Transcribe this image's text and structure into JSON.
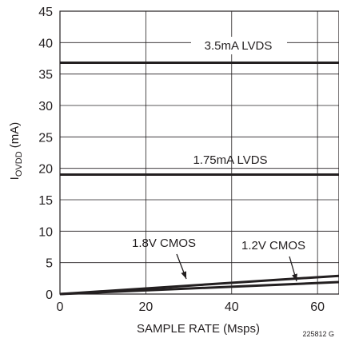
{
  "chart_data": {
    "type": "line",
    "xlabel": "SAMPLE RATE (Msps)",
    "ylabel": {
      "main": "I",
      "sub": "OVDD",
      "unit": " (mA)"
    },
    "xlim": [
      0,
      65
    ],
    "ylim": [
      0,
      45
    ],
    "x_ticks": [
      "0",
      "20",
      "40",
      "60"
    ],
    "x_tick_values": [
      0,
      20,
      40,
      60
    ],
    "y_ticks": [
      "0",
      "5",
      "10",
      "15",
      "20",
      "25",
      "30",
      "35",
      "40",
      "45"
    ],
    "y_tick_values": [
      0,
      5,
      10,
      15,
      20,
      25,
      30,
      35,
      40,
      45
    ],
    "grid": true,
    "series": [
      {
        "name": "3.5mA LVDS",
        "x": [
          0,
          65
        ],
        "y": [
          36.8,
          36.8
        ]
      },
      {
        "name": "1.75mA LVDS",
        "x": [
          0,
          65
        ],
        "y": [
          19.0,
          19.0
        ]
      },
      {
        "name": "1.8V CMOS",
        "x": [
          0,
          65
        ],
        "y": [
          0,
          2.9
        ]
      },
      {
        "name": "1.2V CMOS",
        "x": [
          0,
          65
        ],
        "y": [
          0,
          1.9
        ]
      }
    ],
    "annotations": [
      {
        "text": "3.5mA LVDS"
      },
      {
        "text": "1.75mA LVDS"
      },
      {
        "text": "1.8V CMOS"
      },
      {
        "text": "1.2V CMOS"
      }
    ],
    "figure_id": "225812 G"
  }
}
